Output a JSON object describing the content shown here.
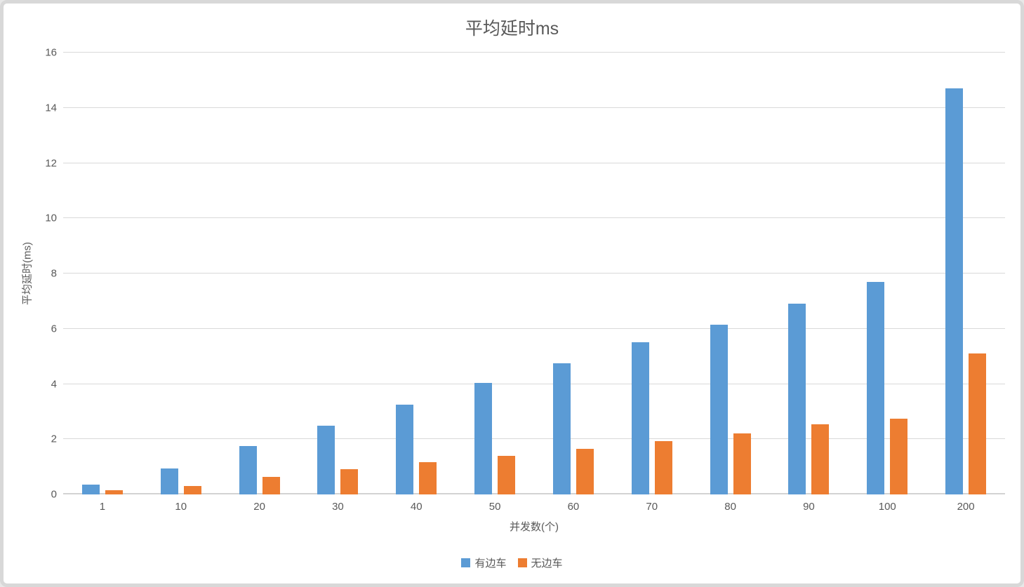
{
  "chart_data": {
    "type": "bar",
    "title": "平均延时ms",
    "xlabel": "并发数(个)",
    "ylabel": "平均延时(ms)",
    "categories": [
      "1",
      "10",
      "20",
      "30",
      "40",
      "50",
      "60",
      "70",
      "80",
      "90",
      "100",
      "200"
    ],
    "series": [
      {
        "name": "有边车",
        "color": "#5B9BD5",
        "values": [
          0.35,
          0.95,
          1.75,
          2.5,
          3.25,
          4.05,
          4.75,
          5.5,
          6.15,
          6.9,
          7.7,
          14.7
        ]
      },
      {
        "name": "无边车",
        "color": "#ED7D31",
        "values": [
          0.15,
          0.3,
          0.63,
          0.92,
          1.18,
          1.4,
          1.65,
          1.93,
          2.2,
          2.55,
          2.75,
          5.1
        ]
      }
    ],
    "ylim": [
      0,
      16
    ],
    "ytick_step": 2,
    "grid": true,
    "legend_position": "bottom"
  },
  "colors": {
    "grid": "#D9D9D9",
    "text": "#595959",
    "frame_border": "#D8D8D8",
    "background": "#FFFFFF"
  }
}
